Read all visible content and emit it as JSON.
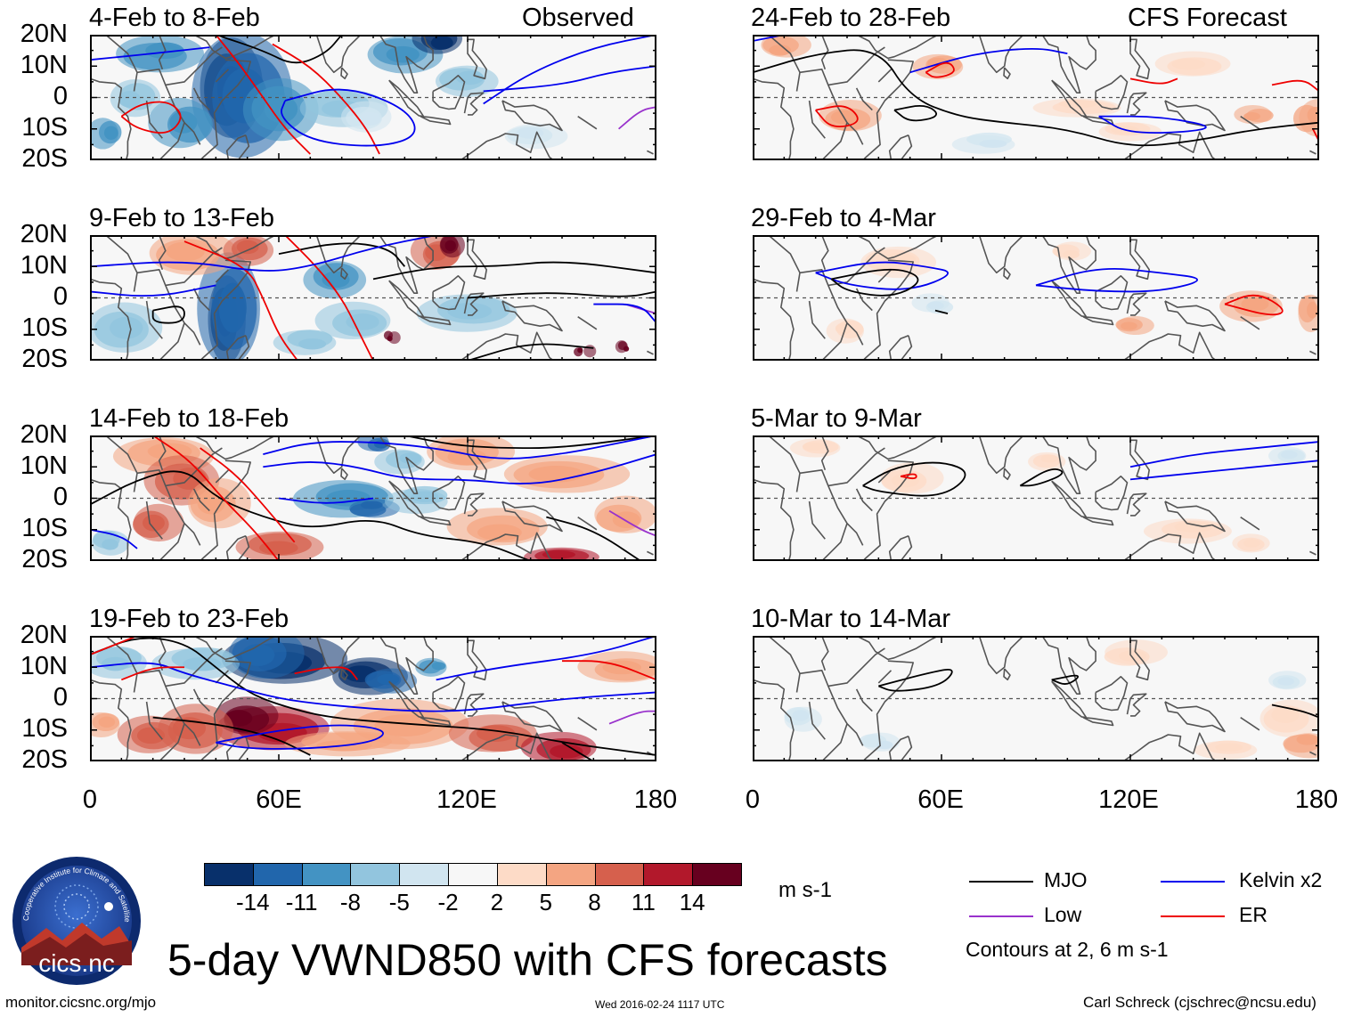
{
  "header": {
    "observed_label": "Observed",
    "forecast_label": "CFS Forecast"
  },
  "panels": {
    "left": [
      {
        "title": "4-Feb to 8-Feb"
      },
      {
        "title": "9-Feb to 13-Feb"
      },
      {
        "title": "14-Feb to 18-Feb"
      },
      {
        "title": "19-Feb to 23-Feb"
      }
    ],
    "right": [
      {
        "title": "24-Feb to 28-Feb"
      },
      {
        "title": "29-Feb to 4-Mar"
      },
      {
        "title": "5-Mar to 9-Mar"
      },
      {
        "title": "10-Mar to 14-Mar"
      }
    ]
  },
  "axes": {
    "lat_ticks": [
      "20N",
      "10N",
      "0",
      "10S",
      "20S"
    ],
    "lon_ticks": [
      "0",
      "60E",
      "120E",
      "180"
    ]
  },
  "colorbar": {
    "labels": [
      "-14",
      "-11",
      "-8",
      "-5",
      "-2",
      "2",
      "5",
      "8",
      "11",
      "14"
    ],
    "colors": [
      "#08306b",
      "#2166ac",
      "#4393c3",
      "#92c5de",
      "#d1e5f0",
      "#f7f7f7",
      "#fddbc7",
      "#f4a582",
      "#d6604d",
      "#b2182b",
      "#67001f"
    ],
    "units": "m s-1"
  },
  "legend": {
    "items": [
      {
        "label": "MJO",
        "color": "#000000"
      },
      {
        "label": "Kelvin x2",
        "color": "#0000ee"
      },
      {
        "label": "Low",
        "color": "#9932cc"
      },
      {
        "label": "ER",
        "color": "#ee0000"
      }
    ],
    "note": "Contours at 2, 6 m s-1"
  },
  "logo": {
    "text": "cics.nc",
    "ring_text": "Cooperative Institute for Climate and Satellites"
  },
  "footer": {
    "title": "5-day VWND850 with CFS forecasts",
    "url": "monitor.cicsnc.org/mjo",
    "timestamp": "Wed 2016-02-24 1117 UTC",
    "author": "Carl Schreck (cjschrec@ncsu.edu)"
  }
}
